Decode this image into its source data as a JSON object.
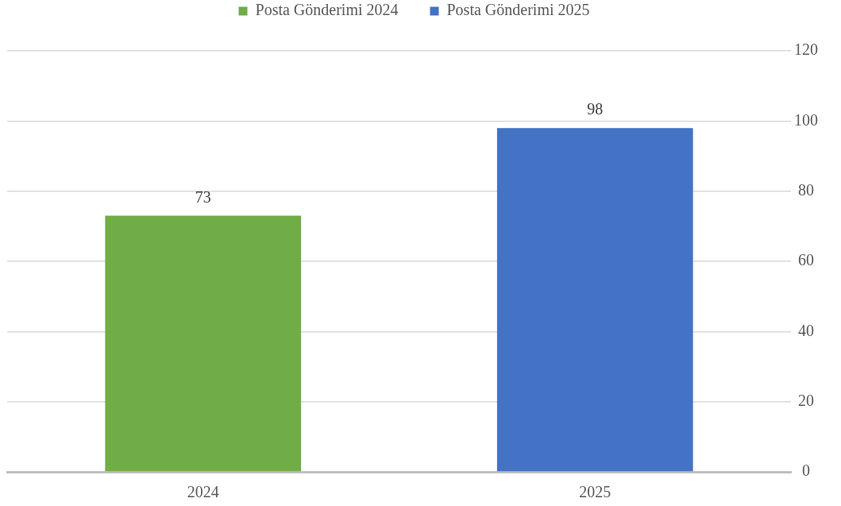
{
  "chart_data": {
    "type": "bar",
    "categories": [
      "2024",
      "2025"
    ],
    "series": [
      {
        "name": "Posta Gönderimi 2024",
        "color": "#70ad47",
        "values": [
          73,
          null
        ]
      },
      {
        "name": "Posta Gönderimi 2025",
        "color": "#4472c4",
        "values": [
          null,
          98
        ]
      }
    ],
    "ylim": [
      0,
      120
    ],
    "yticks": [
      0,
      20,
      40,
      60,
      80,
      100,
      120
    ],
    "grid": "y",
    "legend": "top",
    "data_labels": true
  }
}
